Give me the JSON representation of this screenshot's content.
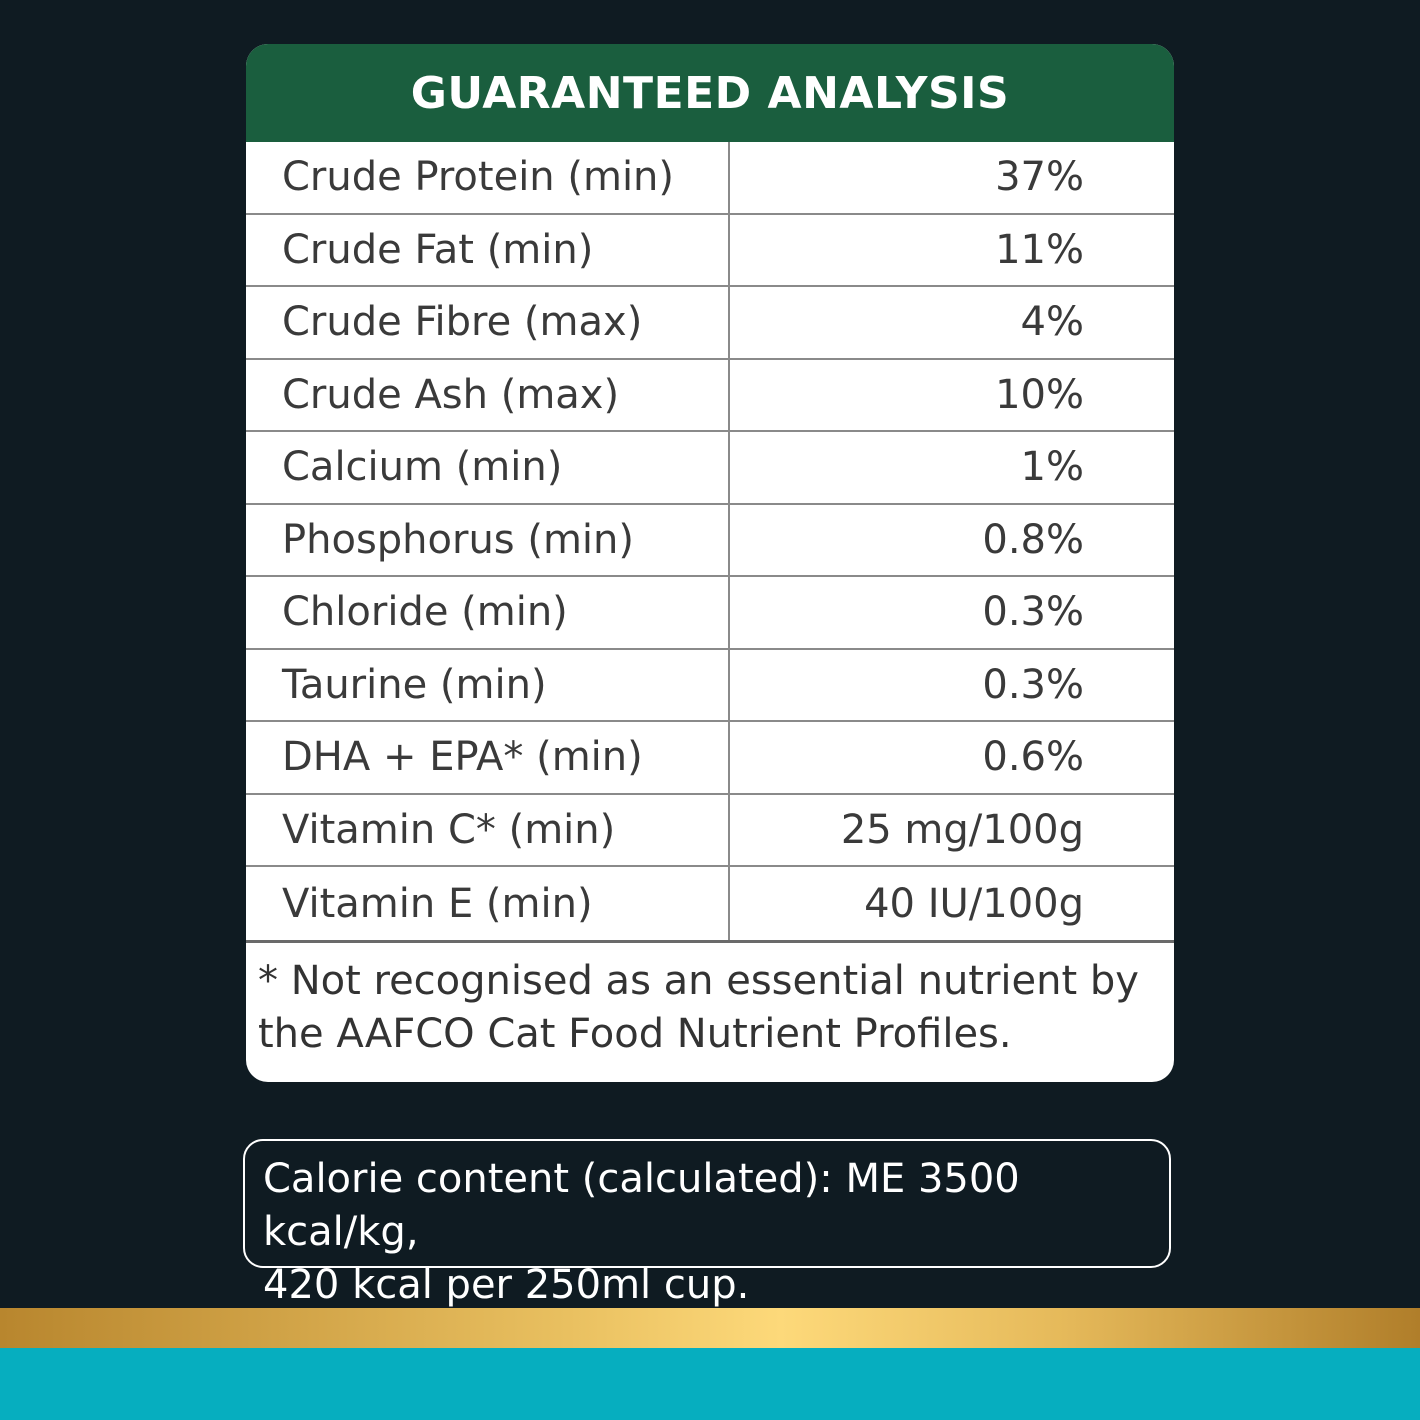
{
  "header": {
    "title": "GUARANTEED ANALYSIS"
  },
  "table": {
    "rows": [
      [
        "Crude Protein (min)",
        "37%"
      ],
      [
        "Crude Fat (min)",
        "11%"
      ],
      [
        "Crude Fibre (max)",
        "4%"
      ],
      [
        "Crude Ash (max)",
        "10%"
      ],
      [
        "Calcium (min)",
        "1%"
      ],
      [
        "Phosphorus (min)",
        "0.8%"
      ],
      [
        "Chloride (min)",
        "0.3%"
      ],
      [
        "Taurine (min)",
        "0.3%"
      ],
      [
        "DHA + EPA* (min)",
        "0.6%"
      ],
      [
        "Vitamin C* (min)",
        "25 mg/100g"
      ],
      [
        "Vitamin E (min)",
        "40 IU/100g"
      ]
    ]
  },
  "footnote": {
    "lines": [
      "* Not recognised as an essential nutrient by",
      "the AAFCO Cat Food Nutrient Profiles."
    ]
  },
  "calorie": {
    "lines": [
      "Calorie content (calculated): ME 3500 kcal/kg,",
      "420 kcal per 250ml cup."
    ]
  }
}
